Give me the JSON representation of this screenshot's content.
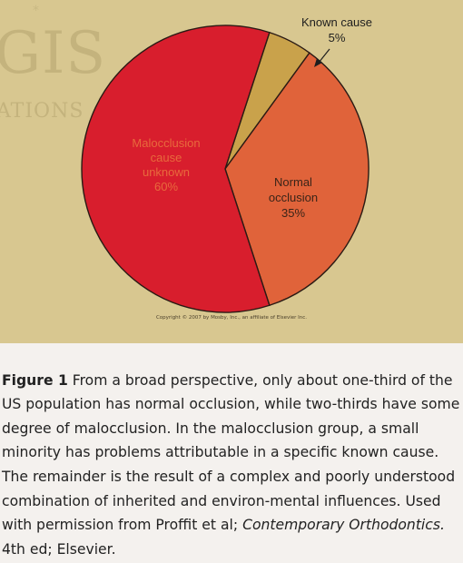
{
  "watermark": {
    "star": "*",
    "line1": "GIS",
    "line2": "ATIONS"
  },
  "chart_data": {
    "type": "pie",
    "title": "",
    "slices": [
      {
        "label_lines": [
          "Known cause",
          "5%"
        ],
        "value": 5,
        "color": "#c9a24b"
      },
      {
        "label_lines": [
          "Normal",
          "occlusion",
          "35%"
        ],
        "value": 35,
        "color": "#e0633a"
      },
      {
        "label_lines": [
          "Malocclusion",
          "cause",
          "unknown",
          "60%"
        ],
        "value": 60,
        "color": "#d81e2d"
      }
    ]
  },
  "copyright": "Copyright © 2007 by Mosby, Inc., an affiliate of Elsevier Inc.",
  "caption": {
    "label": "Figure 1",
    "text": "From a broad perspective, only about one-third of the US population has normal occlusion, while two-thirds have some degree of malocclusion. In the malocclusion group, a small minority has problems attributable in a specific known cause. The remainder is the result of a complex and poorly understood combination of inherited and environ-mental influences. Used with permission from Proffit et al;",
    "book": "Contemporary Orthodontics.",
    "edition": "4th ed; Elsevier."
  }
}
